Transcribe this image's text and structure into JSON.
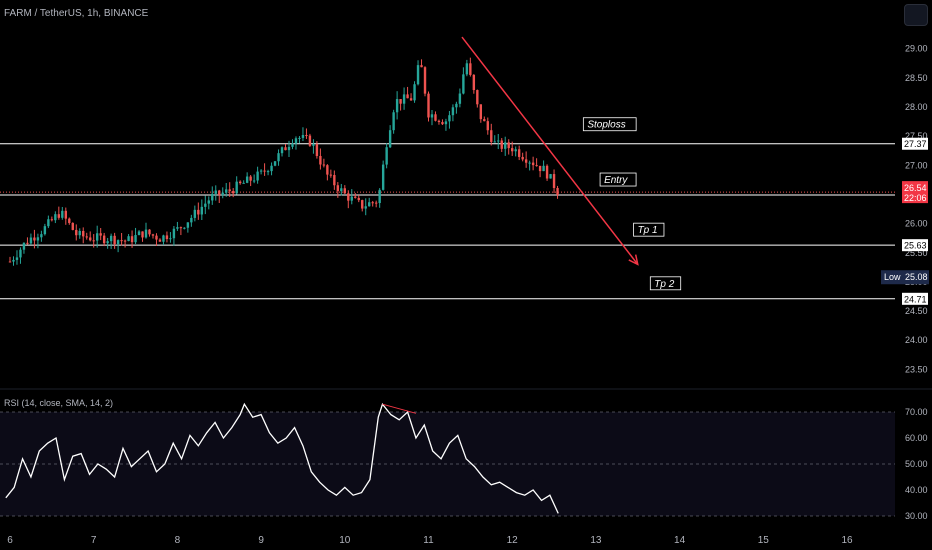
{
  "header": {
    "title": "FARM / TetherUS, 1h, BINANCE"
  },
  "rsi_header": {
    "title": "RSI (14, close, SMA, 14, 2)"
  },
  "colors": {
    "up": "#26a69a",
    "down": "#ef5350",
    "line_white": "#ffffff",
    "arrow": "#f23645",
    "price_tag": "#f23645",
    "low_tag": "#1e2a4a"
  },
  "chart_data": [
    {
      "type": "candlestick",
      "title": "FARM / TetherUS, 1h, BINANCE",
      "x_ticks": [
        "6",
        "7",
        "8",
        "9",
        "10",
        "11",
        "12",
        "13",
        "14",
        "15",
        "16"
      ],
      "y_ticks": [
        "23.50",
        "24.00",
        "24.50",
        "25.00",
        "25.50",
        "26.00",
        "26.50",
        "27.00",
        "27.50",
        "28.00",
        "28.50",
        "29.00"
      ],
      "ylim": [
        23.3,
        29.6
      ],
      "levels": [
        {
          "name": "Stoploss",
          "value": 27.37,
          "label": "27.37"
        },
        {
          "name": "Entry",
          "value": 26.49,
          "label": "26.49"
        },
        {
          "name": "Tp 1",
          "value": 25.63,
          "label": "25.63"
        },
        {
          "name": "Tp 2",
          "value": 24.71,
          "label": "24.71"
        }
      ],
      "current_price": {
        "value": 26.54,
        "label": "26.54",
        "countdown": "22:06"
      },
      "low_marker": {
        "label": "Low",
        "value": "25.08"
      },
      "annotations": [
        "Stoploss",
        "Entry",
        "Tp 1",
        "Tp 2"
      ],
      "trend_arrow": {
        "from": {
          "day": 11.4,
          "price": 29.2
        },
        "to": {
          "day": 13.5,
          "price": 25.3
        }
      },
      "price_path": [
        [
          6.0,
          25.35
        ],
        [
          6.2,
          25.7
        ],
        [
          6.4,
          25.9
        ],
        [
          6.6,
          26.2
        ],
        [
          6.8,
          25.8
        ],
        [
          7.0,
          25.75
        ],
        [
          7.2,
          25.75
        ],
        [
          7.4,
          25.7
        ],
        [
          7.6,
          25.85
        ],
        [
          7.8,
          25.75
        ],
        [
          8.0,
          25.9
        ],
        [
          8.2,
          26.15
        ],
        [
          8.4,
          26.45
        ],
        [
          8.6,
          26.55
        ],
        [
          8.8,
          26.7
        ],
        [
          9.0,
          26.85
        ],
        [
          9.2,
          27.15
        ],
        [
          9.4,
          27.5
        ],
        [
          9.6,
          27.4
        ],
        [
          9.8,
          26.8
        ],
        [
          10.0,
          26.5
        ],
        [
          10.2,
          26.3
        ],
        [
          10.4,
          26.4
        ],
        [
          10.5,
          27.4
        ],
        [
          10.6,
          28.1
        ],
        [
          10.8,
          28.15
        ],
        [
          10.9,
          28.8
        ],
        [
          11.0,
          27.9
        ],
        [
          11.2,
          27.75
        ],
        [
          11.35,
          28.1
        ],
        [
          11.45,
          28.8
        ],
        [
          11.6,
          27.9
        ],
        [
          11.8,
          27.35
        ],
        [
          12.0,
          27.3
        ],
        [
          12.2,
          27.1
        ],
        [
          12.4,
          26.9
        ],
        [
          12.55,
          26.54
        ]
      ]
    },
    {
      "type": "line",
      "title": "RSI (14, close, SMA, 14, 2)",
      "y_ticks": [
        "30.00",
        "40.00",
        "50.00",
        "60.00",
        "70.00"
      ],
      "ylim": [
        27,
        76
      ],
      "bands": [
        30,
        50,
        70
      ],
      "series": [
        {
          "x": [
            5.95,
            6.05,
            6.15,
            6.25,
            6.35,
            6.45,
            6.55,
            6.65,
            6.75,
            6.85,
            6.95,
            7.05,
            7.15,
            7.25,
            7.35,
            7.45,
            7.55,
            7.65,
            7.75,
            7.85,
            7.95,
            8.05,
            8.15,
            8.25,
            8.35,
            8.45,
            8.55,
            8.65,
            8.75,
            8.8,
            8.9,
            9.0,
            9.1,
            9.2,
            9.3,
            9.4,
            9.5,
            9.6,
            9.7,
            9.8,
            9.9,
            10.0,
            10.1,
            10.2,
            10.3,
            10.4,
            10.45,
            10.55,
            10.65,
            10.75,
            10.85,
            10.95,
            11.05,
            11.15,
            11.25,
            11.35,
            11.45,
            11.55,
            11.65,
            11.75,
            11.85,
            11.95,
            12.05,
            12.15,
            12.25,
            12.35,
            12.45,
            12.55
          ],
          "values": [
            37,
            41,
            52,
            45,
            55,
            58,
            60,
            44,
            53,
            54,
            46,
            50,
            48,
            45,
            56,
            49,
            52,
            55,
            47,
            50,
            58,
            52,
            61,
            57,
            62,
            66,
            60,
            64,
            69,
            73,
            68,
            69,
            62,
            58,
            60,
            64,
            57,
            47,
            43,
            40,
            38,
            41,
            38,
            39,
            44,
            68,
            73,
            69,
            67,
            70,
            60,
            65,
            55,
            52,
            58,
            61,
            52,
            49,
            45,
            42,
            43,
            41,
            39,
            38,
            40,
            36,
            38,
            31
          ]
        }
      ]
    }
  ]
}
